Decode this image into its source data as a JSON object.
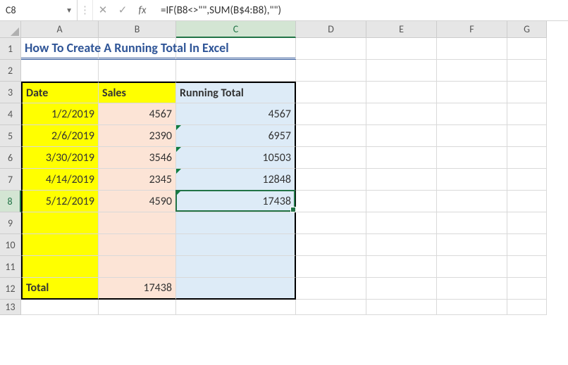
{
  "formula_bar": {
    "cell_ref": "C8",
    "cancel_icon": "✕",
    "accept_icon": "✓",
    "fx_label": "fx",
    "formula": "=IF(B8<>\"\",SUM(B$4:B8),\"\")"
  },
  "columns": {
    "labels": [
      "A",
      "B",
      "C",
      "D",
      "E",
      "F",
      "G"
    ],
    "widths": [
      110,
      110,
      170,
      100,
      100,
      100,
      56
    ],
    "active_index": 2
  },
  "row_headers": {
    "labels": [
      "1",
      "2",
      "3",
      "4",
      "5",
      "6",
      "7",
      "8",
      "9",
      "10",
      "11",
      "12",
      "13"
    ],
    "active_index": 7
  },
  "styles": {
    "title_color": "#2f5597",
    "tbl_border": "#000000",
    "colA_header_bg": "#ffff00",
    "colA_body_bg": "#ffff00",
    "colB_header_bg": "#ffff00",
    "colB_body_bg": "#fce4d6",
    "colC_header_bg": "#ddebf7",
    "colC_body_bg": "#ddebf7"
  },
  "content": {
    "title": "How To Create A Running Total In Excel",
    "headers": {
      "A": "Date",
      "B": "Sales",
      "C": "Running Total"
    },
    "rows": [
      {
        "date": "1/2/2019",
        "sales": "4567",
        "running": "4567"
      },
      {
        "date": "2/6/2019",
        "sales": "2390",
        "running": "6957"
      },
      {
        "date": "3/30/2019",
        "sales": "3546",
        "running": "10503"
      },
      {
        "date": "4/14/2019",
        "sales": "2345",
        "running": "12848"
      },
      {
        "date": "5/12/2019",
        "sales": "4590",
        "running": "17438"
      }
    ],
    "footer": {
      "label": "Total",
      "value": "17438"
    }
  },
  "selection": {
    "row": 8,
    "col": 2
  }
}
